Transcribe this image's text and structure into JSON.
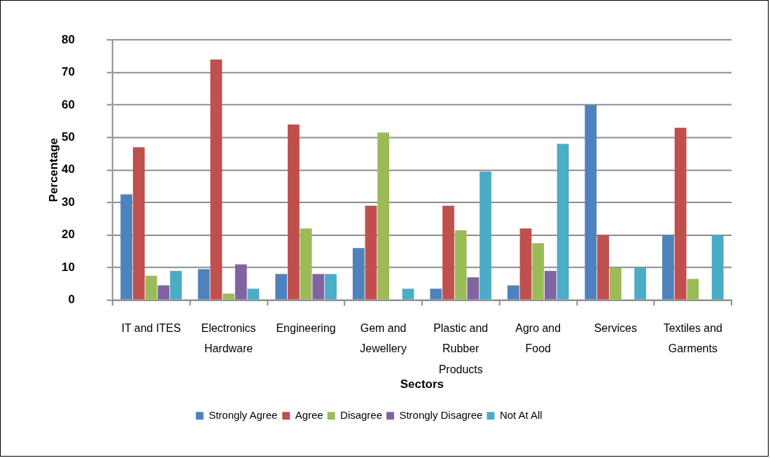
{
  "chart_data": {
    "type": "bar",
    "xlabel": "Sectors",
    "ylabel": "Percentage",
    "categories": [
      "IT and ITES",
      "Electronics Hardware",
      "Engineering",
      "Gem and Jewellery",
      "Plastic and Rubber Products",
      "Agro and Food",
      "Services",
      "Textiles and Garments"
    ],
    "series": [
      {
        "name": "Strongly Agree",
        "color": "#4f81bd",
        "values": [
          32.5,
          9.5,
          8,
          16,
          3.5,
          4.5,
          60,
          20
        ]
      },
      {
        "name": "Agree",
        "color": "#c0504d",
        "values": [
          47,
          74,
          54,
          29,
          29,
          22,
          20,
          53
        ]
      },
      {
        "name": "Disagree",
        "color": "#9bbb59",
        "values": [
          7.5,
          2,
          22,
          51.5,
          21.5,
          17.5,
          10,
          6.5
        ]
      },
      {
        "name": "Strongly Disagree",
        "color": "#8064a2",
        "values": [
          4.5,
          11,
          8,
          null,
          7,
          9,
          null,
          null
        ]
      },
      {
        "name": "Not At All",
        "color": "#4bacc6",
        "values": [
          9,
          3.5,
          8,
          3.5,
          39.5,
          48,
          10,
          20
        ]
      }
    ],
    "ylim": [
      0,
      80
    ],
    "yticks": [
      0,
      10,
      20,
      30,
      40,
      50,
      60,
      70,
      80
    ],
    "grid": "y",
    "legend": "bottom"
  }
}
